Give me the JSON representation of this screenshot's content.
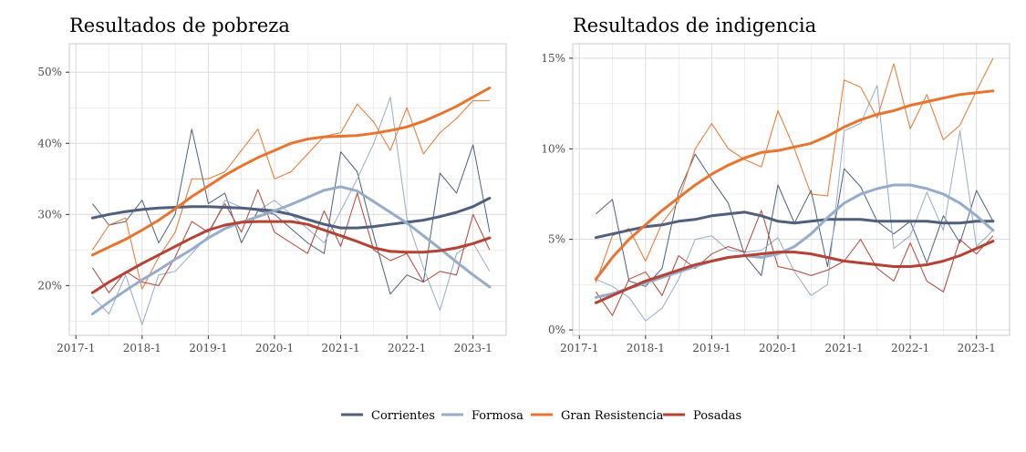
{
  "colors": {
    "Corrientes": "#4f5f7c",
    "Formosa": "#96acc8",
    "Gran Resistencia": "#e8752f",
    "Posadas": "#b44235",
    "grid": "#dcdcdc",
    "panel_border": "#c8c8c8"
  },
  "legend": [
    "Corrientes",
    "Formosa",
    "Gran Resistencia",
    "Posadas"
  ],
  "chart_data": [
    {
      "type": "line",
      "title": "Resultados de pobreza",
      "x_tick_labels": [
        "2017-1",
        "2018-1",
        "2019-1",
        "2020-1",
        "2021-1",
        "2022-1",
        "2023-1"
      ],
      "x_tick_values": [
        2017.0,
        2018.0,
        2019.0,
        2020.0,
        2021.0,
        2022.0,
        2023.0
      ],
      "y_tick_labels": [
        "20%",
        "30%",
        "40%",
        "50%"
      ],
      "y_tick_values": [
        20,
        30,
        40,
        50
      ],
      "xlim": [
        2016.9,
        2023.5
      ],
      "ylim": [
        13,
        54
      ],
      "grid": true,
      "x": [
        2017.25,
        2017.5,
        2017.75,
        2018.0,
        2018.25,
        2018.5,
        2018.75,
        2019.0,
        2019.25,
        2019.5,
        2019.75,
        2020.0,
        2020.25,
        2020.5,
        2020.75,
        2021.0,
        2021.25,
        2021.5,
        2021.75,
        2022.0,
        2022.25,
        2022.5,
        2022.75,
        2023.0,
        2023.25
      ],
      "series": [
        {
          "name": "Corrientes",
          "values": [
            31.5,
            28.5,
            29.0,
            32.0,
            26.0,
            30.0,
            42.0,
            31.5,
            33.0,
            26.0,
            30.5,
            30.0,
            28.0,
            26.0,
            24.5,
            38.8,
            36.0,
            27.0,
            18.8,
            21.5,
            20.5,
            35.8,
            33.0,
            39.8,
            27.5
          ],
          "trend": [
            29.5,
            30.0,
            30.4,
            30.7,
            30.9,
            31.0,
            31.1,
            31.1,
            31.0,
            30.9,
            30.7,
            30.5,
            30.0,
            29.3,
            28.6,
            28.1,
            28.1,
            28.3,
            28.6,
            28.9,
            29.2,
            29.7,
            30.3,
            31.1,
            32.3
          ]
        },
        {
          "name": "Formosa",
          "values": [
            18.5,
            16.0,
            21.5,
            14.5,
            21.5,
            22.0,
            24.5,
            27.0,
            32.0,
            31.0,
            30.5,
            32.0,
            30.0,
            28.0,
            26.0,
            30.5,
            35.0,
            40.0,
            46.5,
            29.5,
            22.5,
            16.5,
            24.5,
            26.0,
            22.0
          ],
          "trend": [
            16.0,
            17.7,
            19.3,
            20.8,
            22.2,
            23.7,
            25.1,
            26.7,
            28.0,
            28.9,
            29.7,
            30.5,
            31.4,
            32.4,
            33.4,
            33.9,
            33.3,
            31.8,
            30.3,
            28.8,
            27.0,
            25.2,
            23.3,
            21.5,
            19.8
          ]
        },
        {
          "name": "Gran Resistencia",
          "values": [
            25.0,
            28.5,
            29.5,
            19.5,
            24.0,
            27.5,
            35.0,
            35.0,
            36.0,
            39.0,
            42.0,
            35.0,
            36.0,
            38.5,
            41.0,
            41.5,
            45.5,
            43.0,
            39.0,
            45.0,
            38.5,
            41.5,
            43.5,
            46.0,
            46.0
          ],
          "trend": [
            24.3,
            25.4,
            26.5,
            27.8,
            29.2,
            30.8,
            32.5,
            34.0,
            35.5,
            36.8,
            38.0,
            39.0,
            40.0,
            40.6,
            40.9,
            41.0,
            41.1,
            41.4,
            41.8,
            42.3,
            43.1,
            44.1,
            45.2,
            46.5,
            47.8
          ]
        },
        {
          "name": "Posadas",
          "values": [
            22.5,
            19.0,
            22.0,
            20.5,
            20.0,
            24.0,
            29.0,
            27.5,
            31.5,
            27.5,
            33.5,
            27.5,
            26.0,
            24.5,
            30.5,
            25.5,
            33.0,
            25.0,
            23.5,
            24.5,
            20.5,
            22.0,
            21.5,
            30.0,
            25.0
          ],
          "trend": [
            19.0,
            20.5,
            21.8,
            23.1,
            24.3,
            25.5,
            26.7,
            27.8,
            28.5,
            28.9,
            29.0,
            29.0,
            29.0,
            28.6,
            27.8,
            27.0,
            26.2,
            25.3,
            24.8,
            24.7,
            24.7,
            24.9,
            25.3,
            25.9,
            26.7
          ]
        }
      ]
    },
    {
      "type": "line",
      "title": "Resultados de indigencia",
      "x_tick_labels": [
        "2017-1",
        "2018-1",
        "2019-1",
        "2020-1",
        "2021-1",
        "2022-1",
        "2023-1"
      ],
      "x_tick_values": [
        2017.0,
        2018.0,
        2019.0,
        2020.0,
        2021.0,
        2022.0,
        2023.0
      ],
      "y_tick_labels": [
        "0%",
        "5%",
        "10%",
        "15%"
      ],
      "y_tick_values": [
        0,
        5,
        10,
        15
      ],
      "xlim": [
        2016.9,
        2023.5
      ],
      "ylim": [
        -0.3,
        15.8
      ],
      "grid": true,
      "x": [
        2017.25,
        2017.5,
        2017.75,
        2018.0,
        2018.25,
        2018.5,
        2018.75,
        2019.0,
        2019.25,
        2019.5,
        2019.75,
        2020.0,
        2020.25,
        2020.5,
        2020.75,
        2021.0,
        2021.25,
        2021.5,
        2021.75,
        2022.0,
        2022.25,
        2022.5,
        2022.75,
        2023.0,
        2023.25
      ],
      "series": [
        {
          "name": "Corrientes",
          "values": [
            6.4,
            7.2,
            2.7,
            2.4,
            3.4,
            7.6,
            9.7,
            8.3,
            7.0,
            4.1,
            3.0,
            8.0,
            5.9,
            7.7,
            3.5,
            8.9,
            7.9,
            6.0,
            5.3,
            6.0,
            3.7,
            6.3,
            4.8,
            7.7,
            6.0
          ],
          "trend": [
            5.1,
            5.3,
            5.5,
            5.7,
            5.8,
            6.0,
            6.1,
            6.3,
            6.4,
            6.5,
            6.3,
            6.0,
            5.9,
            6.0,
            6.1,
            6.1,
            6.1,
            6.0,
            6.0,
            6.0,
            6.0,
            5.9,
            5.9,
            6.0,
            6.0
          ]
        },
        {
          "name": "Formosa",
          "values": [
            2.8,
            2.4,
            1.8,
            0.5,
            1.2,
            2.8,
            5.0,
            5.2,
            4.4,
            4.3,
            4.4,
            5.1,
            3.2,
            1.9,
            2.5,
            11.0,
            11.4,
            13.5,
            4.5,
            5.2,
            7.6,
            5.5,
            11.0,
            4.6,
            5.5
          ],
          "trend": [
            1.8,
            2.0,
            2.3,
            2.6,
            2.9,
            3.2,
            3.5,
            3.8,
            4.0,
            4.1,
            4.0,
            4.2,
            4.6,
            5.3,
            6.2,
            7.0,
            7.5,
            7.8,
            8.0,
            8.0,
            7.8,
            7.5,
            7.0,
            6.3,
            5.5
          ]
        },
        {
          "name": "Gran Resistencia",
          "values": [
            2.6,
            5.2,
            5.6,
            3.8,
            5.9,
            7.1,
            10.0,
            11.4,
            10.0,
            9.4,
            9.0,
            12.1,
            10.0,
            7.5,
            7.4,
            13.8,
            13.4,
            11.7,
            14.7,
            11.1,
            13.0,
            10.5,
            11.3,
            13.2,
            15.0
          ],
          "trend": [
            2.8,
            4.0,
            5.0,
            5.8,
            6.6,
            7.3,
            8.0,
            8.6,
            9.1,
            9.5,
            9.8,
            9.9,
            10.1,
            10.3,
            10.7,
            11.2,
            11.6,
            11.9,
            12.1,
            12.4,
            12.6,
            12.8,
            13.0,
            13.1,
            13.2
          ]
        },
        {
          "name": "Posadas",
          "values": [
            2.1,
            0.8,
            2.8,
            3.2,
            1.9,
            4.1,
            3.4,
            4.2,
            4.6,
            4.3,
            6.6,
            3.5,
            3.3,
            3.0,
            3.3,
            3.8,
            5.0,
            3.4,
            2.7,
            4.8,
            2.7,
            2.1,
            5.0,
            4.2,
            5.2
          ],
          "trend": [
            1.5,
            1.9,
            2.3,
            2.7,
            3.0,
            3.3,
            3.6,
            3.8,
            4.0,
            4.1,
            4.2,
            4.3,
            4.3,
            4.2,
            4.0,
            3.8,
            3.7,
            3.6,
            3.5,
            3.5,
            3.6,
            3.8,
            4.1,
            4.5,
            4.9
          ]
        }
      ]
    }
  ]
}
